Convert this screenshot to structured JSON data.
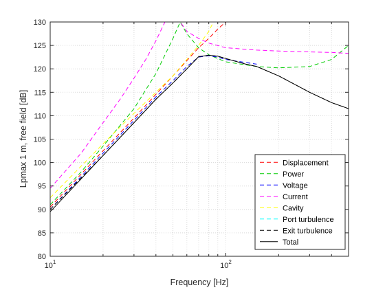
{
  "chart_data": {
    "type": "line",
    "xlabel": "Frequency [Hz]",
    "ylabel": "Lpmax 1 m, free field [dB]",
    "xscale": "log",
    "xlim": [
      10,
      500
    ],
    "ylim": [
      80,
      130
    ],
    "grid": true,
    "legend_position": "bottom-right",
    "x_ticks": [
      {
        "value": 10,
        "base": "10",
        "exp": "1"
      },
      {
        "value": 100,
        "base": "10",
        "exp": "2"
      }
    ],
    "y_ticks": [
      {
        "value": 80,
        "label": "80"
      },
      {
        "value": 85,
        "label": "85"
      },
      {
        "value": 90,
        "label": "90"
      },
      {
        "value": 95,
        "label": "95"
      },
      {
        "value": 100,
        "label": "100"
      },
      {
        "value": 105,
        "label": "105"
      },
      {
        "value": 110,
        "label": "110"
      },
      {
        "value": 115,
        "label": "115"
      },
      {
        "value": 120,
        "label": "120"
      },
      {
        "value": 125,
        "label": "125"
      },
      {
        "value": 130,
        "label": "130"
      }
    ],
    "series": [
      {
        "name": "Displacement",
        "color": "#ff0000",
        "dash": true,
        "x": [
          10,
          20,
          30,
          50,
          70,
          80,
          90,
          100
        ],
        "y": [
          90.5,
          102.5,
          109.5,
          118.5,
          124.5,
          126.5,
          128.5,
          130
        ]
      },
      {
        "name": "Power",
        "color": "#00cc00",
        "dash": true,
        "x": [
          10,
          15,
          20,
          30,
          40,
          50,
          55,
          60,
          70,
          80,
          100,
          150,
          200,
          300,
          400,
          500
        ],
        "y": [
          91,
          98,
          103.5,
          111.5,
          119,
          126.5,
          130,
          127.5,
          124.5,
          123,
          121.5,
          120.5,
          120.2,
          120.5,
          122,
          125
        ]
      },
      {
        "name": "Voltage",
        "color": "#0000ff",
        "dash": true,
        "x": [
          10,
          20,
          30,
          40,
          50,
          60,
          70,
          80,
          90,
          100,
          150
        ],
        "y": [
          90,
          102,
          109,
          114,
          117.5,
          120.5,
          122.5,
          122.8,
          122.5,
          122,
          121
        ]
      },
      {
        "name": "Current",
        "color": "#ff00ff",
        "dash": true,
        "x": [
          10,
          15,
          20,
          25,
          30,
          35,
          40,
          45,
          55,
          60,
          70,
          80,
          100,
          150,
          200,
          300,
          400,
          500
        ],
        "y": [
          94.5,
          102,
          108.5,
          113.5,
          118,
          122,
          126,
          130,
          130,
          128,
          126.5,
          125.5,
          124.5,
          124,
          123.8,
          123.6,
          123.5,
          123.3
        ]
      },
      {
        "name": "Cavity",
        "color": "#ffff00",
        "dash": true,
        "x": [
          10,
          20,
          30,
          40,
          50,
          60,
          70,
          80,
          85
        ],
        "y": [
          92.5,
          104,
          110.5,
          115,
          118.5,
          122,
          125,
          128,
          130
        ]
      },
      {
        "name": "Port turbulence",
        "color": "#00ffff",
        "dash": true,
        "x": [],
        "y": []
      },
      {
        "name": "Exit turbulence",
        "color": "#000000",
        "dash": true,
        "x": [
          10,
          20,
          30,
          40,
          50,
          60,
          70,
          80,
          90,
          100,
          130,
          150,
          200,
          300,
          400,
          500
        ],
        "y": [
          90,
          101.5,
          108.5,
          113.5,
          117,
          120,
          122.6,
          122.9,
          122.7,
          122.2,
          121,
          120.5,
          118.5,
          115,
          112.8,
          111.5
        ]
      },
      {
        "name": "Total",
        "color": "#000000",
        "dash": false,
        "x": [
          10,
          20,
          30,
          40,
          50,
          60,
          70,
          80,
          90,
          100,
          130,
          150,
          200,
          300,
          400,
          500
        ],
        "y": [
          89.5,
          101.5,
          108.5,
          113.5,
          117,
          120,
          122.6,
          122.9,
          122.7,
          122.2,
          121,
          120.5,
          118.5,
          115,
          112.8,
          111.5
        ]
      }
    ]
  }
}
